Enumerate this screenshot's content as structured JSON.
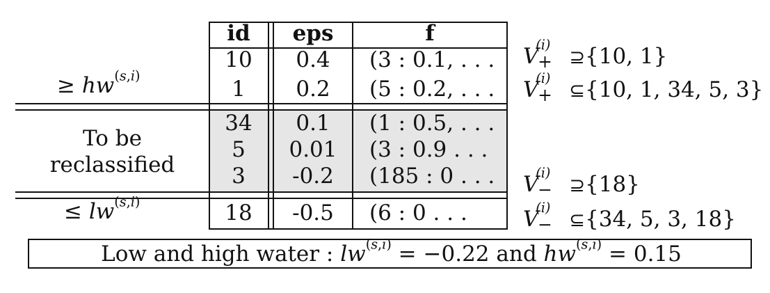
{
  "table": {
    "headers": {
      "id": "id",
      "eps": "eps",
      "f": "f"
    },
    "group_labels": {
      "high": "≥ hw(s,i)",
      "reclassify_line1": "To be",
      "reclassify_line2": "reclassified",
      "low": "≤ lw(s,i)"
    },
    "rows": [
      {
        "id": "10",
        "eps": "0.4",
        "f": "(3 : 0.1, . . .",
        "group": "high"
      },
      {
        "id": "1",
        "eps": "0.2",
        "f": "(5 : 0.2, . . .",
        "group": "high"
      },
      {
        "id": "34",
        "eps": "0.1",
        "f": "(1 : 0.5, . . .",
        "group": "reclassify"
      },
      {
        "id": "5",
        "eps": "0.01",
        "f": "(3 : 0.9 . . .",
        "group": "reclassify"
      },
      {
        "id": "3",
        "eps": "-0.2",
        "f": "(185 : 0 . . .",
        "group": "reclassify"
      },
      {
        "id": "18",
        "eps": "-0.5",
        "f": "(6 : 0 . . .",
        "group": "low"
      }
    ],
    "shade_color": "#e6e6e6"
  },
  "annotations": {
    "v_plus_superset": "V+(i) ⊇{10, 1}",
    "v_plus_subset": "V+(i) ⊆{10, 1, 34, 5, 3}",
    "v_minus_superset": "V−(i) ⊇{18}",
    "v_minus_subset": "V−(i) ⊆{34, 5, 3, 18}",
    "sets": {
      "v_plus_superset": "{10, 1}",
      "v_plus_subset": "{10, 1, 34, 5, 3}",
      "v_minus_superset": "{18}",
      "v_minus_subset": "{34, 5, 3, 18}"
    }
  },
  "caption": {
    "prefix": "Low and high water :",
    "lw_value": "−0.22",
    "connector": "and",
    "hw_value": "0.15",
    "full": "Low and high water : lw(s,i) = −0.22 and hw(s,i) = 0.15"
  }
}
